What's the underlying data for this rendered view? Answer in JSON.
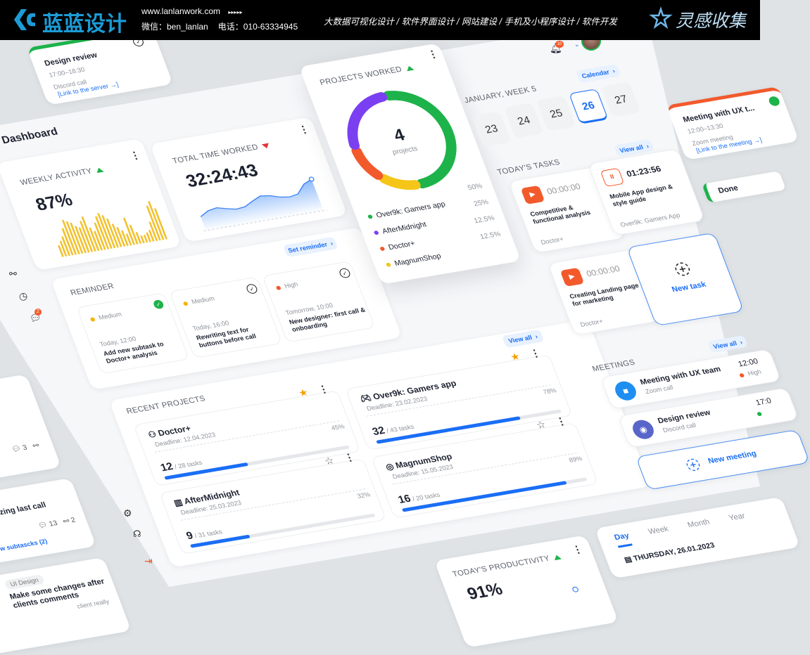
{
  "banner": {
    "brand": "蓝蓝设计",
    "url": "www.lanlanwork.com",
    "arrows": "▸▸▸▸▸",
    "wechat": "微信：ben_lanlan",
    "phone": "电话：010-63334945",
    "sep": "/",
    "services": [
      "大数据可视化设计",
      "软件界面设计",
      "网站建设",
      "手机及小程序设计",
      "软件开发"
    ],
    "collect": "灵感收集",
    "brand_color": "#1c9bd6"
  },
  "float_design_review": {
    "title": "Design review",
    "time": "17:00–18:30",
    "type": "Discord call",
    "link": "[Link to the server →]",
    "accent": "#1db34a"
  },
  "float_meeting": {
    "title": "Meeting with UX t...",
    "time": "12:00–13:30",
    "type": "Zoom meeting",
    "link": "[Link to the meeting →]",
    "accent": "#f25a2c"
  },
  "float_done": {
    "label": "Done"
  },
  "left_cards": [
    {
      "text": "nd",
      "comments": "3"
    },
    {
      "text": "zing last call",
      "comments": "13",
      "shares": "2",
      "link": "w subtascks (2)"
    },
    {
      "tag": "UI Design",
      "title": "Make some changes after clients comments",
      "body": "client really"
    }
  ],
  "header": {
    "title": "Dashboard",
    "notifications": "10"
  },
  "sidebar": {
    "chat_badge": "2"
  },
  "weekly_activity": {
    "label": "Weekly activity",
    "value": "87%",
    "trend": "up",
    "bars": [
      30,
      40,
      50,
      70,
      90,
      85,
      80,
      70,
      65,
      80,
      90,
      60,
      50,
      70,
      85,
      92,
      85,
      75,
      60,
      50,
      40,
      30,
      70,
      50,
      30,
      20,
      20,
      25,
      30,
      50,
      90,
      100,
      80
    ]
  },
  "total_time": {
    "label": "Total time worked",
    "value": "32:24:43",
    "trend": "down",
    "series": [
      40,
      55,
      60,
      52,
      45,
      48,
      62,
      74,
      70,
      60,
      55,
      60,
      88,
      100
    ]
  },
  "projects_worked": {
    "label": "Projects worked",
    "count": "4",
    "count_label": "projects",
    "trend": "up",
    "items": [
      {
        "name": "Over9k: Gamers app",
        "pct": "50%",
        "value": 50,
        "color": "#1db34a"
      },
      {
        "name": "AfterMidnight",
        "pct": "25%",
        "value": 25,
        "color": "#7b3ff2"
      },
      {
        "name": "Doctor+",
        "pct": "12.5%",
        "value": 12.5,
        "color": "#f25a2c"
      },
      {
        "name": "MagnumShop",
        "pct": "12.5%",
        "value": 12.5,
        "color": "#f5c518"
      }
    ]
  },
  "reminder": {
    "label": "Reminder",
    "set_label": "Set reminder",
    "items": [
      {
        "priority": "Medium",
        "color": "#f5b400",
        "when": "Today, 12:00",
        "text": "Add new subtask to Doctor+ analysis",
        "done": true
      },
      {
        "priority": "Medium",
        "color": "#f5b400",
        "when": "Today, 16:00",
        "text": "Rewriting text for buttons before call",
        "done": false
      },
      {
        "priority": "High",
        "color": "#f25a2c",
        "when": "Tomorrow, 10:00",
        "text": "New designer: first call & onboarding",
        "done": false
      }
    ]
  },
  "recent_projects": {
    "label": "Recent projects",
    "view_all": "View all",
    "items": [
      {
        "name": "Doctor+",
        "deadline": "Deadline: 12.04.2023",
        "pct": "45%",
        "progress": 45,
        "done": "12",
        "total": "/ 28 tasks",
        "starred": true
      },
      {
        "name": "Over9k: Gamers app",
        "deadline": "Deadline: 23.02.2023",
        "pct": "78%",
        "progress": 78,
        "done": "32",
        "total": "/ 43 tasks",
        "starred": true
      },
      {
        "name": "AfterMidnight",
        "deadline": "Deadline: 25.03.2023",
        "pct": "32%",
        "progress": 32,
        "done": "9",
        "total": "/ 31 tasks",
        "starred": false
      },
      {
        "name": "MagnumShop",
        "deadline": "Deadline: 15.05.2023",
        "pct": "89%",
        "progress": 89,
        "done": "16",
        "total": "/ 20 tasks",
        "starred": false
      }
    ]
  },
  "calendar": {
    "button": "Calendar",
    "week": "January, week 5",
    "days": [
      "23",
      "24",
      "25",
      "26",
      "27"
    ],
    "selected": "26"
  },
  "tasks": {
    "label": "Today's tasks",
    "view_all": "View all",
    "items": [
      {
        "timer": "00:00:00",
        "title": "Competitive & functional analysis",
        "project": "Doctor+",
        "state": "play"
      },
      {
        "timer": "01:23:56",
        "title": "Mobile App design & style guide",
        "project": "Over9k: Gamers App",
        "state": "pause"
      },
      {
        "timer": "00:00:00",
        "title": "Creating Landing page for marketing",
        "project": "Doctor+",
        "state": "play"
      }
    ],
    "new_task": "New task"
  },
  "meetings": {
    "label": "Meetings",
    "view_all": "View all",
    "items": [
      {
        "title": "Meeting with UX team",
        "type": "Zoom call",
        "time": "12:00",
        "priority": "High",
        "color": "#f25a2c"
      },
      {
        "title": "Design review",
        "type": "Discord call",
        "time": "17:0",
        "priority": "",
        "color": "#1db34a"
      }
    ],
    "new_meeting": "New meeting"
  },
  "productivity": {
    "label": "Today's productivity",
    "value": "91%",
    "trend": "up"
  },
  "day_view": {
    "tabs": [
      "Day",
      "Week",
      "Month",
      "Year"
    ],
    "active": "Day",
    "date": "THURSDAY, 26.01.2023"
  }
}
